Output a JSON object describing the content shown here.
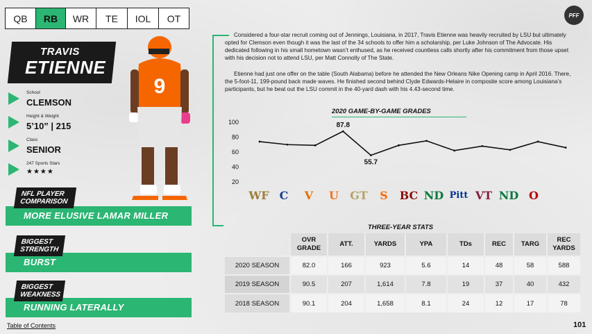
{
  "tabs": [
    {
      "label": "QB"
    },
    {
      "label": "RB"
    },
    {
      "label": "WR"
    },
    {
      "label": "TE"
    },
    {
      "label": "IOL"
    },
    {
      "label": "OT"
    }
  ],
  "active_tab": "RB",
  "logo_text": "PFF",
  "player": {
    "first_name": "TRAVIS",
    "last_name": "ETIENNE",
    "jersey_number": "9"
  },
  "bio": {
    "school_label": "School",
    "school": "CLEMSON",
    "hw_label": "Height & Weight",
    "hw": "5’10” | 215",
    "class_label": "Class",
    "class": "SENIOR",
    "stars_label": "247 Sports Stars",
    "stars": "★★★★"
  },
  "comparison": {
    "nfl_label": "NFL PLAYER COMPARISON",
    "nfl_value": "MORE ELUSIVE LAMAR MILLER",
    "strength_label": "BIGGEST STRENGTH",
    "strength_value": "BURST",
    "weakness_label": "BIGGEST WEAKNESS",
    "weakness_value": "RUNNING LATERALLY"
  },
  "paragraphs": [
    "Considered a four-star recruit coming out of Jennings, Louisiana, in 2017, Travis Etienne was heavily recruited by LSU but ultimately opted for Clemson even though it was the last of the 34 schools to offer him a scholarship, per Luke Johnson of The Advocate. His dedicated following in his small hometown wasn’t enthused, as he received countless calls shortly after his commitment from those upset with his decision not to attend LSU, per Matt Connolly of The State.",
    "Etienne had just one offer on the table (South Alabama) before he attended the New Orleans Nike Opening camp in April 2016. There, the 5-foot-11, 199-pound back made waves. He finished second behind Clyde Edwards-Helaire in composite score among Louisiana’s participants, but he beat out the LSU commit in the 40-yard dash with his 4.43-second time."
  ],
  "chart_title": "2020 GAME-BY-GAME GRADES",
  "chart_data": {
    "type": "line",
    "y_ticks": [
      100,
      80,
      60,
      40,
      20
    ],
    "ylim": [
      20,
      100
    ],
    "x": [
      "WF",
      "SC",
      "UVA",
      "MIA",
      "GT",
      "SYR",
      "BC",
      "ND",
      "PITT",
      "VT",
      "ND",
      "OSU"
    ],
    "values": [
      74,
      70,
      69,
      87.8,
      55.7,
      69,
      75,
      62,
      68,
      63,
      74,
      66
    ],
    "annotations": [
      {
        "x": "MIA",
        "label": "87.8"
      },
      {
        "x": "GT",
        "label": "55.7"
      }
    ]
  },
  "opponents": [
    {
      "abbr": "WF",
      "color": "#9e7e38"
    },
    {
      "abbr": "C",
      "color": "#1a3f8f"
    },
    {
      "abbr": "V",
      "color": "#e57200"
    },
    {
      "abbr": "U",
      "color": "#f47321"
    },
    {
      "abbr": "GT",
      "color": "#b3a369"
    },
    {
      "abbr": "S",
      "color": "#f76900"
    },
    {
      "abbr": "BC",
      "color": "#8a100b"
    },
    {
      "abbr": "ND",
      "color": "#0c7a3e"
    },
    {
      "abbr": "Pitt",
      "color": "#003594"
    },
    {
      "abbr": "VT",
      "color": "#861f41"
    },
    {
      "abbr": "ND",
      "color": "#0c7a3e"
    },
    {
      "abbr": "O",
      "color": "#bb0000"
    }
  ],
  "stats_title": "THREE-YEAR STATS",
  "stats": {
    "headers": [
      "OVR GRADE",
      "ATT.",
      "YARDS",
      "YPA",
      "TDs",
      "REC",
      "TARG",
      "REC YARDS"
    ],
    "rows": [
      {
        "season": "2020 SEASON",
        "values": [
          "82.0",
          "166",
          "923",
          "5.6",
          "14",
          "48",
          "58",
          "588"
        ]
      },
      {
        "season": "2019 SEASON",
        "values": [
          "90.5",
          "207",
          "1,614",
          "7.8",
          "19",
          "37",
          "40",
          "432"
        ]
      },
      {
        "season": "2018 SEASON",
        "values": [
          "90.1",
          "204",
          "1,658",
          "8.1",
          "24",
          "12",
          "17",
          "78"
        ]
      }
    ]
  },
  "footer": {
    "toc": "Table of Contents",
    "page_number": "101"
  },
  "colors": {
    "accent_green": "#2bb673",
    "clemson_orange": "#f56600",
    "dark": "#1a1a1a"
  }
}
